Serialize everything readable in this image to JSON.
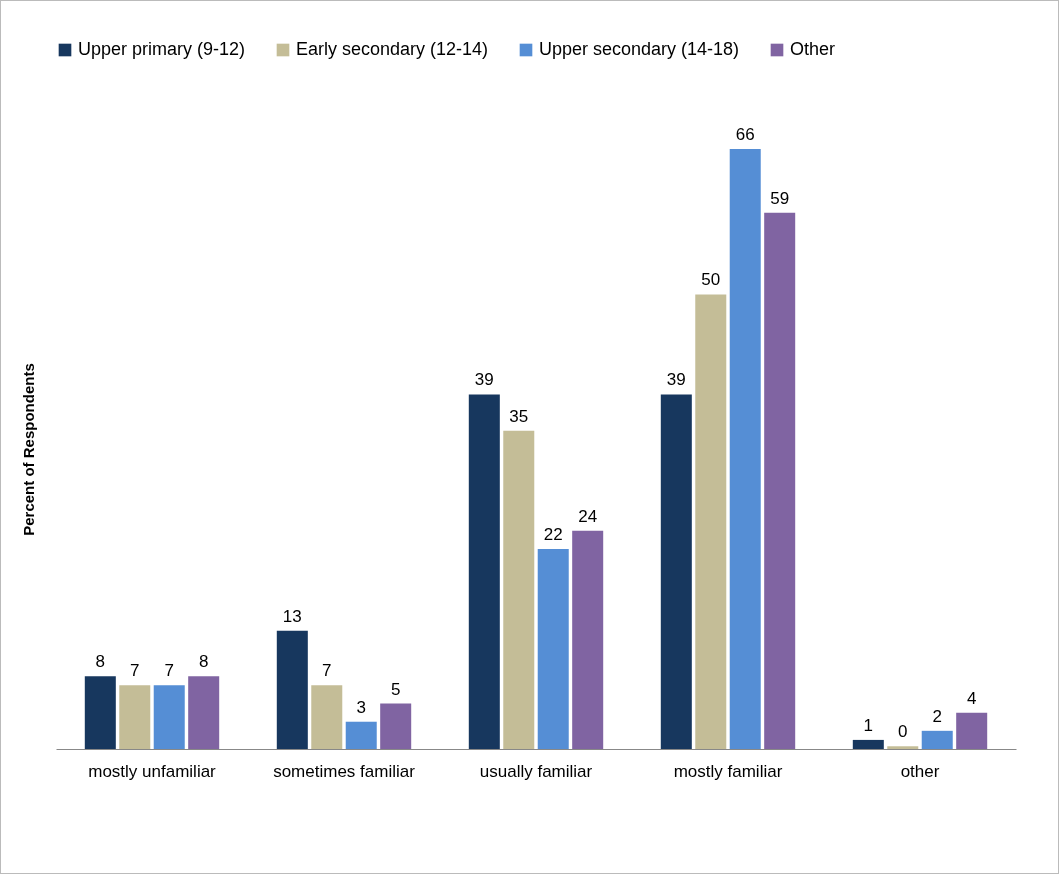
{
  "chart_data": {
    "type": "bar",
    "ylabel": "Percent of Respondents",
    "categories": [
      "mostly unfamiliar",
      "sometimes familiar",
      "usually familiar",
      "mostly familiar",
      "other"
    ],
    "series": [
      {
        "name": "Upper primary (9-12)",
        "color": "#17375e",
        "values": [
          8,
          13,
          39,
          39,
          1
        ],
        "value_labels": [
          "8",
          "13",
          "39",
          "39",
          "1"
        ]
      },
      {
        "name": "Early secondary (12-14)",
        "color": "#c4bd97",
        "values": [
          7,
          7,
          35,
          50,
          0.3
        ],
        "value_labels": [
          "7",
          "7",
          "35",
          "50",
          "0"
        ]
      },
      {
        "name": "Upper secondary (14-18)",
        "color": "#558ed5",
        "values": [
          7,
          3,
          22,
          66,
          2
        ],
        "value_labels": [
          "7",
          "3",
          "22",
          "66",
          "2"
        ]
      },
      {
        "name": "Other",
        "color": "#8064a2",
        "values": [
          8,
          5,
          24,
          59,
          4
        ],
        "value_labels": [
          "8",
          "5",
          "24",
          "59",
          "4"
        ]
      }
    ],
    "legend": "top",
    "grid": false
  }
}
